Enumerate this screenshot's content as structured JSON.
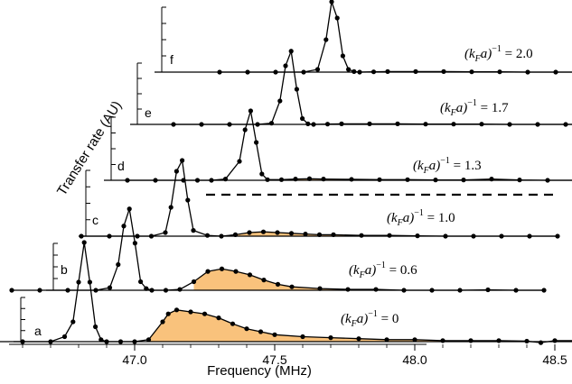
{
  "chart_data": {
    "type": "line",
    "title": "",
    "xlabel": "Frequency (MHz)",
    "ylabel": "Transfer rate (AU)",
    "x_ticks": [
      "47.0",
      "47.5",
      "48.0",
      "48.5"
    ],
    "xlim": [
      46.4,
      48.7
    ],
    "style": {
      "line_color": "#000000",
      "fill_color": "#f9c27c",
      "dashed_separator": true
    },
    "series": [
      {
        "name": "a",
        "label": "(k_F a)^{-1} = 0",
        "label_parts": [
          "(k",
          "F",
          "a)",
          "−1",
          " = 0"
        ],
        "x": [
          46.4,
          46.5,
          46.6,
          46.7,
          46.75,
          46.78,
          46.8,
          46.82,
          46.84,
          46.86,
          46.88,
          46.9,
          46.95,
          47.0,
          47.05,
          47.1,
          47.12,
          47.15,
          47.2,
          47.25,
          47.3,
          47.35,
          47.4,
          47.45,
          47.5,
          47.6,
          47.7,
          47.8,
          47.9,
          48.0,
          48.1,
          48.2,
          48.3,
          48.4,
          48.45,
          48.5,
          48.6
        ],
        "y": [
          0.0,
          0.0,
          0.0,
          0.0,
          0.05,
          0.2,
          0.6,
          1.0,
          0.6,
          0.15,
          0.02,
          0.0,
          0.0,
          0.0,
          0.02,
          0.2,
          0.28,
          0.32,
          0.3,
          0.28,
          0.24,
          0.18,
          0.13,
          0.1,
          0.07,
          0.05,
          0.04,
          0.03,
          0.02,
          0.02,
          0.01,
          0.01,
          0.01,
          0.005,
          -0.01,
          0.01,
          0.01
        ],
        "fill_from_x": 47.05
      },
      {
        "name": "b",
        "label": "(k_F a)^{-1} = 0.6",
        "label_parts": [
          "(k",
          "F",
          "a)",
          "−1",
          " = 0.6"
        ],
        "x": [
          46.5,
          46.6,
          46.7,
          46.8,
          46.85,
          46.88,
          46.9,
          46.92,
          46.94,
          46.96,
          46.98,
          47.0,
          47.05,
          47.1,
          47.15,
          47.2,
          47.25,
          47.3,
          47.35,
          47.4,
          47.45,
          47.5,
          47.6,
          47.7,
          47.8,
          47.9,
          48.0,
          48.1,
          48.2,
          48.3,
          48.4
        ],
        "y": [
          0.0,
          0.0,
          0.0,
          0.0,
          0.03,
          0.3,
          0.75,
          0.95,
          0.55,
          0.1,
          0.02,
          0.0,
          0.0,
          0.01,
          0.1,
          0.22,
          0.25,
          0.22,
          0.18,
          0.12,
          0.07,
          0.04,
          0.02,
          0.01,
          0.01,
          0.0,
          0.0,
          0.0,
          0.005,
          0.0,
          0.0
        ],
        "fill_from_x": 47.12
      },
      {
        "name": "c",
        "label": "(k_F a)^{-1} = 1.0",
        "label_parts": [
          "(k",
          "F",
          "a)",
          "−1",
          " = 1.0"
        ],
        "x": [
          46.7,
          46.8,
          46.9,
          46.95,
          47.0,
          47.02,
          47.04,
          47.06,
          47.08,
          47.1,
          47.15,
          47.2,
          47.25,
          47.3,
          47.35,
          47.4,
          47.45,
          47.5,
          47.55,
          47.6,
          47.7,
          47.8,
          47.9,
          48.0,
          48.1,
          48.2,
          48.3,
          48.4
        ],
        "y": [
          0.0,
          0.0,
          0.0,
          0.0,
          0.05,
          0.4,
          0.9,
          1.05,
          0.5,
          0.08,
          0.01,
          0.0,
          0.02,
          0.05,
          0.06,
          0.05,
          0.04,
          0.03,
          0.02,
          0.02,
          0.01,
          0.01,
          0.005,
          0.0,
          0.0,
          0.0,
          0.0,
          0.0
        ],
        "fill_from_x": 47.18
      },
      {
        "name": "d",
        "label": "(k_F a)^{-1} = 1.3",
        "label_parts": [
          "(k",
          "F",
          "a)",
          "−1",
          " = 1.3"
        ],
        "x": [
          46.8,
          46.9,
          47.0,
          47.05,
          47.1,
          47.15,
          47.2,
          47.22,
          47.24,
          47.26,
          47.28,
          47.3,
          47.35,
          47.4,
          47.45,
          47.5,
          47.6,
          47.7,
          47.8,
          47.9,
          48.0,
          48.1,
          48.2,
          48.3,
          48.4,
          48.5
        ],
        "y": [
          0.0,
          0.0,
          0.0,
          0.0,
          0.0,
          0.02,
          0.3,
          0.8,
          1.1,
          0.6,
          0.1,
          0.01,
          0.01,
          0.02,
          0.025,
          0.02,
          0.015,
          0.01,
          0.01,
          0.005,
          0.005,
          0.02,
          0.005,
          0.0,
          0.0,
          0.0
        ],
        "fill_from_x": 47.3
      },
      {
        "name": "e",
        "label": "(k_F a)^{-1} = 1.7",
        "label_parts": [
          "(k",
          "F",
          "a)",
          "−1",
          " = 1.7"
        ],
        "x": [
          46.9,
          47.0,
          47.1,
          47.2,
          47.25,
          47.28,
          47.3,
          47.32,
          47.34,
          47.36,
          47.38,
          47.4,
          47.45,
          47.5,
          47.6,
          47.7,
          47.8,
          47.9,
          48.0,
          48.1,
          48.2,
          48.3,
          48.4,
          48.5,
          48.6
        ],
        "y": [
          0.0,
          0.0,
          0.0,
          0.0,
          0.02,
          0.4,
          1.0,
          1.25,
          0.6,
          0.1,
          0.01,
          0.0,
          0.005,
          0.01,
          0.01,
          0.01,
          0.005,
          0.005,
          0.005,
          0.0,
          0.0,
          0.0,
          0.0,
          0.0,
          0.0
        ],
        "fill_from_x": 47.4
      },
      {
        "name": "f",
        "label": "(k_F a)^{-1} = 2.0",
        "label_parts": [
          "(k",
          "F",
          "a)",
          "−1",
          " = 2.0"
        ],
        "x": [
          47.0,
          47.1,
          47.2,
          47.3,
          47.35,
          47.38,
          47.4,
          47.42,
          47.44,
          47.46,
          47.48,
          47.5,
          47.55,
          47.6,
          47.7,
          47.8,
          47.9,
          48.0,
          48.1,
          48.2,
          48.3,
          48.4,
          48.5,
          48.6,
          48.7
        ],
        "y": [
          0.0,
          0.0,
          0.0,
          0.0,
          0.05,
          0.6,
          1.3,
          1.0,
          0.3,
          0.05,
          0.01,
          0.0,
          0.005,
          0.01,
          0.01,
          0.01,
          0.005,
          0.005,
          0.0,
          0.0,
          0.0,
          0.0,
          0.0,
          0.0,
          0.0
        ],
        "fill_from_x": 47.5
      }
    ]
  }
}
